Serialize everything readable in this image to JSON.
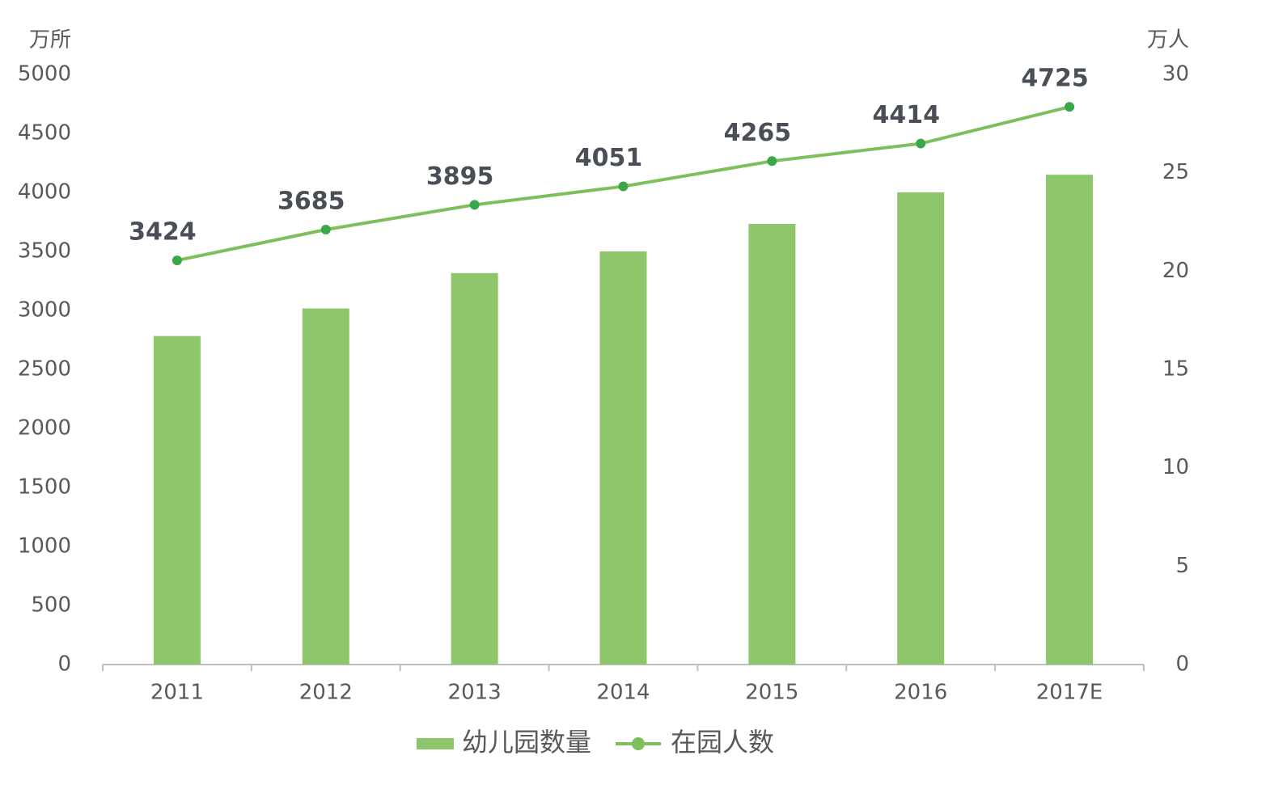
{
  "chart_data": {
    "type": "bar_line",
    "y_label": "万所",
    "y2_label": "万人",
    "categories": [
      "2011",
      "2012",
      "2013",
      "2014",
      "2015",
      "2016",
      "2017E"
    ],
    "series": [
      {
        "name": "幼儿园数量",
        "type": "bar",
        "axis": "y2",
        "color": "#8dc66b",
        "values": [
          16.7,
          18.1,
          19.9,
          21.0,
          22.4,
          24.0,
          24.9
        ]
      },
      {
        "name": "在园人数",
        "type": "line",
        "axis": "y",
        "color": "#7cbf5b",
        "marker_color": "#3aa84a",
        "values": [
          3424,
          3685,
          3895,
          4051,
          4265,
          4414,
          4725
        ],
        "show_value_labels": true
      }
    ],
    "ylim": [
      0,
      5000
    ],
    "yticks": [
      0,
      500,
      1000,
      1500,
      2000,
      2500,
      3000,
      3500,
      4000,
      4500,
      5000
    ],
    "y2lim": [
      0,
      30
    ],
    "y2ticks": [
      0,
      5,
      10,
      15,
      20,
      25,
      30
    ],
    "legend": "bottom"
  }
}
